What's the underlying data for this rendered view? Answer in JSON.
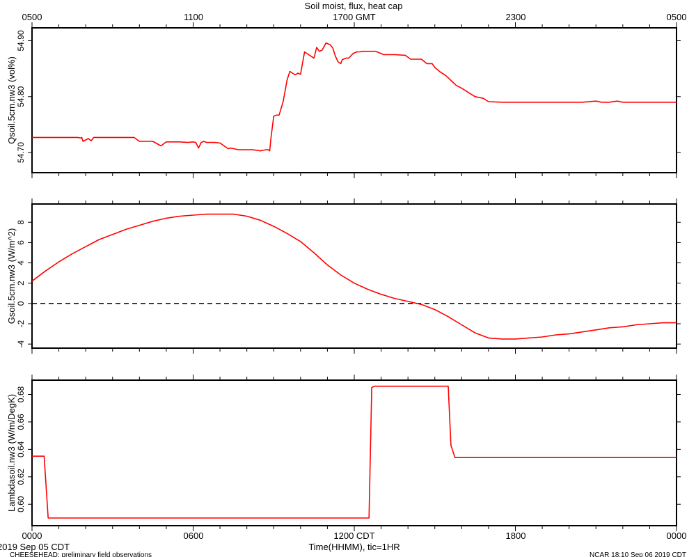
{
  "title": "Soil moist, flux, heat cap",
  "top_axis": {
    "labels": [
      "0500",
      "1100",
      "1700 GMT",
      "2300",
      "0500"
    ]
  },
  "bottom_axis": {
    "labels": [
      "0000",
      "0600",
      "1200 CDT",
      "1800",
      "0000"
    ],
    "xlabel": "Time(HHMM), tic=1HR"
  },
  "footer": {
    "date": "2019 Sep 05 CDT",
    "project": "CHEESEHEAD: preliminary field observations",
    "credit": "NCAR 18:10 Sep 06 2019 CDT"
  },
  "colors": {
    "series": "#ff0000",
    "axes": "#000000",
    "zero_line": "#000000"
  },
  "chart_data": [
    {
      "type": "line",
      "ylabel": "Qsoil.5cm.nw3 (vol%)",
      "ylim": [
        54.664,
        54.923
      ],
      "yticks": [
        54.7,
        54.8,
        54.9
      ],
      "ytick_labels": [
        "54.70",
        "54.80",
        "54.90"
      ],
      "xlim": [
        0,
        24
      ],
      "series": [
        {
          "x": [
            0,
            1.7,
            1.8,
            1.85,
            1.9,
            2.1,
            2.2,
            2.3,
            2.5,
            2.7,
            3.0,
            3.5,
            3.8,
            4.0,
            4.2,
            4.5,
            4.8,
            5.0,
            5.2,
            5.5,
            5.8,
            6.0,
            6.1,
            6.2,
            6.3,
            6.4,
            6.5,
            6.6,
            6.8,
            7.0,
            7.3,
            7.4,
            7.5,
            7.7,
            8.0,
            8.2,
            8.4,
            8.5,
            8.6,
            8.7,
            8.8,
            8.85,
            8.9,
            9.0,
            9.1,
            9.2,
            9.35,
            9.5,
            9.6,
            9.8,
            9.9,
            10.0,
            10.15,
            10.3,
            10.5,
            10.6,
            10.7,
            10.8,
            10.95,
            11.1,
            11.2,
            11.3,
            11.4,
            11.5,
            11.55,
            11.7,
            11.8,
            11.95,
            12.1,
            12.2,
            12.3,
            12.4,
            12.6,
            12.8,
            13.1,
            13.5,
            13.9,
            14.1,
            14.5,
            14.7,
            14.9,
            15.0,
            15.2,
            15.4,
            15.6,
            15.8,
            16.0,
            16.2,
            16.5,
            16.8,
            17.0,
            17.5,
            18.5,
            19.5,
            20.5,
            21.0,
            21.2,
            21.5,
            21.8,
            22.0,
            23.0,
            24.0
          ],
          "y": [
            54.727,
            54.727,
            54.726,
            54.727,
            54.72,
            54.725,
            54.721,
            54.727,
            54.727,
            54.727,
            54.727,
            54.727,
            54.727,
            54.72,
            54.72,
            54.72,
            54.712,
            54.719,
            54.719,
            54.719,
            54.718,
            54.719,
            54.718,
            54.708,
            54.718,
            54.72,
            54.718,
            54.718,
            54.718,
            54.717,
            54.707,
            54.708,
            54.707,
            54.705,
            54.705,
            54.705,
            54.704,
            54.703,
            54.704,
            54.705,
            54.705,
            54.703,
            54.727,
            54.765,
            54.767,
            54.767,
            54.791,
            54.83,
            54.845,
            54.839,
            54.842,
            54.84,
            54.88,
            54.875,
            54.869,
            54.888,
            54.881,
            54.883,
            54.896,
            54.893,
            54.887,
            54.872,
            54.862,
            54.859,
            54.866,
            54.869,
            54.869,
            54.877,
            54.88,
            54.88,
            54.881,
            54.881,
            54.881,
            54.881,
            54.875,
            54.875,
            54.874,
            54.867,
            54.867,
            54.859,
            54.859,
            54.852,
            54.844,
            54.838,
            54.829,
            54.82,
            54.815,
            54.809,
            54.8,
            54.797,
            54.791,
            54.79,
            54.79,
            54.79,
            54.79,
            54.792,
            54.79,
            54.79,
            54.792,
            54.79,
            54.79,
            54.79
          ]
        }
      ]
    },
    {
      "type": "line",
      "ylabel": "Gsoil.5cm.nw3 (W/m^2)",
      "ylim": [
        -4.4,
        9.8
      ],
      "yticks": [
        -4,
        -2,
        0,
        2,
        4,
        6,
        8
      ],
      "ytick_labels": [
        "-4",
        "-2",
        "0",
        "2",
        "4",
        "6",
        "8"
      ],
      "zero_line": 0,
      "xlim": [
        0,
        24
      ],
      "series": [
        {
          "x": [
            0,
            0.5,
            1,
            1.5,
            2,
            2.5,
            3,
            3.5,
            4,
            4.5,
            5,
            5.5,
            6,
            6.5,
            7,
            7.5,
            8,
            8.5,
            9,
            9.5,
            10,
            10.5,
            11,
            11.5,
            12,
            12.5,
            13,
            13.5,
            14,
            14.5,
            15,
            15.5,
            16,
            16.5,
            17,
            17.5,
            18,
            18.5,
            19,
            19.5,
            20,
            20.5,
            21,
            21.5,
            22,
            22.5,
            23,
            23.5,
            24
          ],
          "y": [
            2.2,
            3.2,
            4.1,
            4.9,
            5.6,
            6.3,
            6.8,
            7.3,
            7.7,
            8.1,
            8.4,
            8.6,
            8.7,
            8.8,
            8.8,
            8.8,
            8.6,
            8.2,
            7.6,
            6.9,
            6.1,
            5.0,
            3.8,
            2.8,
            2.0,
            1.4,
            0.9,
            0.5,
            0.2,
            -0.1,
            -0.6,
            -1.3,
            -2.1,
            -2.9,
            -3.4,
            -3.5,
            -3.5,
            -3.4,
            -3.3,
            -3.1,
            -3.0,
            -2.8,
            -2.6,
            -2.4,
            -2.3,
            -2.1,
            -2.0,
            -1.9,
            -1.9
          ]
        }
      ]
    },
    {
      "type": "line",
      "ylabel": "Lambdasoil.nw3 (W/m/DegK)",
      "ylim": [
        0.5844,
        0.6904
      ],
      "yticks": [
        0.6,
        0.62,
        0.64,
        0.66,
        0.68
      ],
      "ytick_labels": [
        "0.60",
        "0.62",
        "0.64",
        "0.66",
        "0.68"
      ],
      "xlim": [
        0,
        24
      ],
      "series": [
        {
          "x": [
            0,
            0.45,
            0.6,
            12.55,
            12.65,
            12.75,
            15.5,
            15.6,
            15.75,
            24
          ],
          "y": [
            0.635,
            0.635,
            0.59,
            0.59,
            0.685,
            0.686,
            0.686,
            0.643,
            0.634,
            0.634
          ]
        }
      ]
    }
  ]
}
